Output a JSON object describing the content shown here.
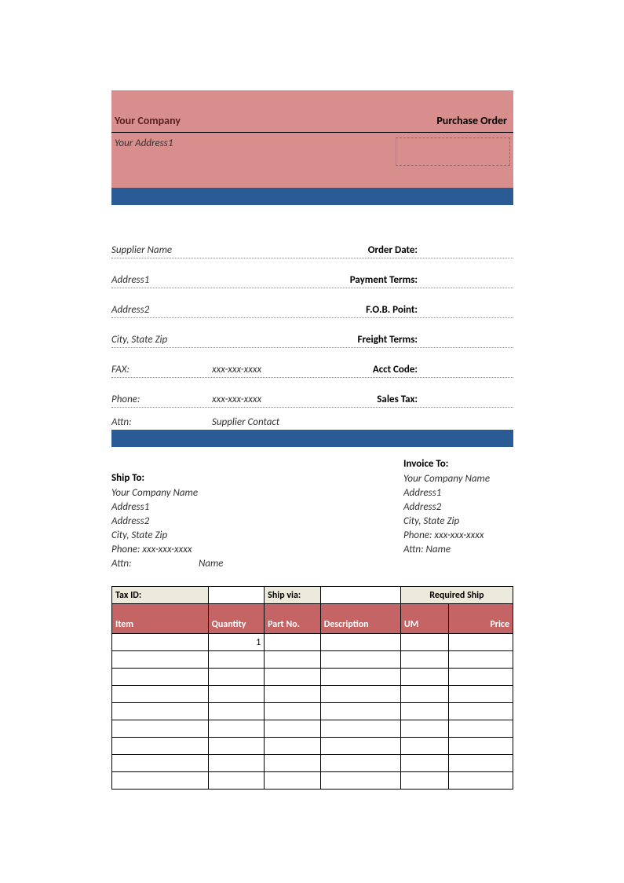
{
  "colors": {
    "header_bg": "#d98e8e",
    "blue_bar": "#2b5b95",
    "items_header_bg": "#c46464",
    "meta_header_bg": "#eceada",
    "text": "#000000",
    "dotted_border": "#888888"
  },
  "header": {
    "company_label": "Your Company",
    "title": "Purchase Order",
    "address1": "Your Address1"
  },
  "supplier": {
    "name": "Supplier Name",
    "address1": "Address1",
    "address2": "Address2",
    "city_state_zip": "City, State Zip",
    "fax_label": "FAX:",
    "fax_value": "xxx-xxx-xxxx",
    "phone_label": "Phone:",
    "phone_value": "xxx-xxx-xxxx",
    "attn_label": "Attn:",
    "attn_value": "Supplier Contact"
  },
  "order_fields": {
    "order_date": "Order Date:",
    "payment_terms": "Payment Terms:",
    "fob_point": "F.O.B. Point:",
    "freight_terms": "Freight Terms:",
    "acct_code": "Acct Code:",
    "sales_tax": "Sales Tax:"
  },
  "ship_to": {
    "heading": "Ship To:",
    "company": "Your Company Name",
    "address1": "Address1",
    "address2": "Address2",
    "city_state_zip": "City, State Zip",
    "phone": "Phone: xxx-xxx-xxxx",
    "attn_label": "Attn:",
    "attn_value": "Name"
  },
  "invoice_to": {
    "heading": "Invoice To:",
    "company": "Your Company Name",
    "address1": "Address1",
    "address2": "Address2",
    "city_state_zip": "City, State Zip",
    "phone": "Phone: xxx-xxx-xxxx",
    "attn": "Attn: Name"
  },
  "meta_row": {
    "tax_id": "Tax ID:",
    "ship_via": "Ship via:",
    "required_ship": "Required Ship"
  },
  "items": {
    "columns": [
      "Item",
      "Quantity",
      "Part No.",
      "Description",
      "UM",
      "Price"
    ],
    "col_widths_pct": [
      24,
      14,
      14,
      20,
      12,
      16
    ],
    "rows": [
      [
        "",
        "1",
        "",
        "",
        "",
        ""
      ],
      [
        "",
        "",
        "",
        "",
        "",
        ""
      ],
      [
        "",
        "",
        "",
        "",
        "",
        ""
      ],
      [
        "",
        "",
        "",
        "",
        "",
        ""
      ],
      [
        "",
        "",
        "",
        "",
        "",
        ""
      ],
      [
        "",
        "",
        "",
        "",
        "",
        ""
      ],
      [
        "",
        "",
        "",
        "",
        "",
        ""
      ],
      [
        "",
        "",
        "",
        "",
        "",
        ""
      ],
      [
        "",
        "",
        "",
        "",
        "",
        ""
      ]
    ]
  }
}
